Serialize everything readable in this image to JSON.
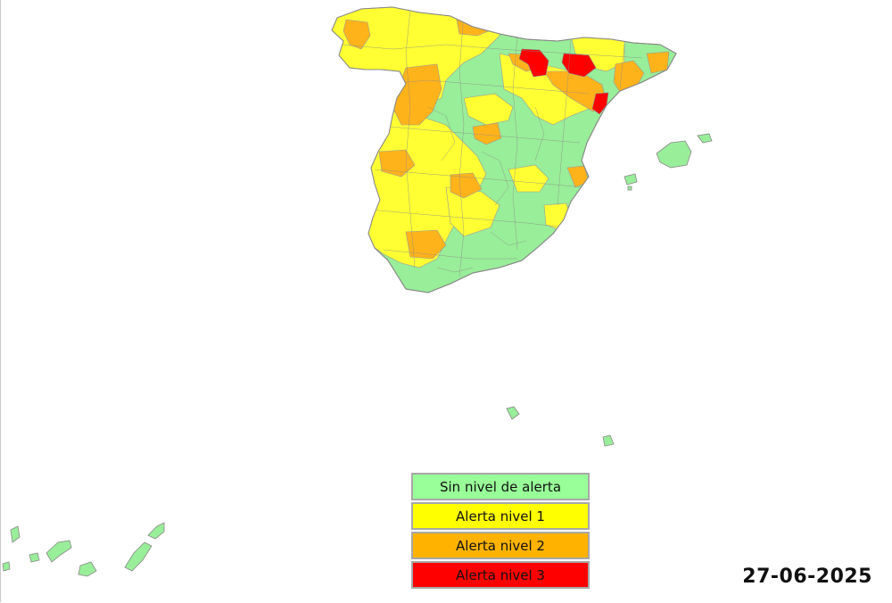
{
  "legend": [
    {
      "label": "Sin nivel de alerta",
      "color": "#99ff99"
    },
    {
      "label": "Alerta nivel 1",
      "color": "#ffff00"
    },
    {
      "label": "Alerta nivel 2",
      "color": "#ffb300"
    },
    {
      "label": "Alerta nivel 3",
      "color": "#ff0000"
    }
  ],
  "date": "27-06-2025",
  "colors": {
    "green": "#99ee99",
    "yellow": "#ffff33",
    "orange": "#ffb31a",
    "red": "#ff0000",
    "border": "#888888"
  }
}
